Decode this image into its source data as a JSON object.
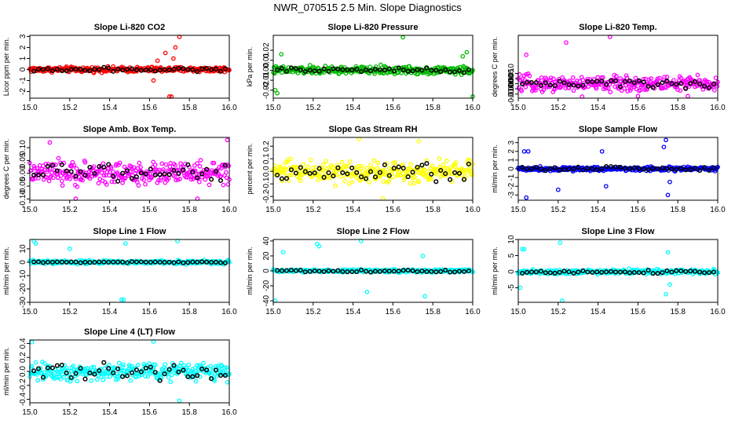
{
  "figure_title": "NWR_070515  2.5 Min. Slope Diagnostics",
  "colors": {
    "background": "#ffffff",
    "axes": "#000000",
    "highlight": "#000000"
  },
  "chart_data": [
    {
      "type": "scatter",
      "title": "Slope Li-820 CO2",
      "ylabel": "Licor ppm per min.",
      "color": "#ff0000",
      "xlim": [
        15.0,
        16.0
      ],
      "ylim": [
        -2.6,
        3.1
      ],
      "xticks": [
        "15.0",
        "15.2",
        "15.4",
        "15.6",
        "15.8",
        "16.0"
      ],
      "yticks": [
        "3",
        "2",
        "1",
        "0",
        "-1",
        "-2"
      ],
      "band": 0.35,
      "black_band": 0.2,
      "outliers": [
        [
          15.68,
          1.5
        ],
        [
          15.72,
          1.0
        ],
        [
          15.75,
          3.0
        ],
        [
          15.7,
          -2.5
        ],
        [
          15.71,
          -2.5
        ],
        [
          15.62,
          -1.0
        ],
        [
          15.73,
          2.0
        ],
        [
          15.64,
          0.8
        ]
      ]
    },
    {
      "type": "scatter",
      "title": "Slope Li-820 Pressure",
      "ylabel": "kPa per min.",
      "color": "#00bb00",
      "xlim": [
        15.0,
        16.0
      ],
      "ylim": [
        -0.028,
        0.035
      ],
      "xticks": [
        "15.0",
        "15.2",
        "15.4",
        "15.6",
        "15.8",
        "16.0"
      ],
      "yticks": [
        "0.02",
        "0.01",
        "0.00",
        "-0.01",
        "-0.02"
      ],
      "band": 0.006,
      "black_band": 0.003,
      "outliers": [
        [
          15.01,
          -0.02
        ],
        [
          15.02,
          -0.023
        ],
        [
          15.65,
          0.033
        ],
        [
          16.0,
          -0.027
        ],
        [
          15.97,
          0.018
        ],
        [
          15.95,
          0.014
        ],
        [
          15.04,
          0.016
        ]
      ]
    },
    {
      "type": "scatter",
      "title": "Slope Li-820 Temp.",
      "ylabel": "degrees C per min.",
      "color": "#ff00ff",
      "xlim": [
        15.0,
        16.0
      ],
      "ylim": [
        -0.014,
        0.047
      ],
      "xticks": [
        "15.0",
        "15.2",
        "15.4",
        "15.6",
        "15.8",
        "16.0"
      ],
      "yticks": [
        "0.010",
        "0.005",
        "0.000",
        "-0.005",
        "-0.010"
      ],
      "band": 0.011,
      "black_band": 0.005,
      "outliers": [
        [
          15.24,
          0.04
        ],
        [
          15.32,
          -0.013
        ],
        [
          15.46,
          0.046
        ],
        [
          15.6,
          -0.012
        ],
        [
          15.85,
          -0.012
        ],
        [
          15.04,
          0.028
        ]
      ]
    },
    {
      "type": "scatter",
      "title": "Slope Amb. Box Temp.",
      "ylabel": "degrees C per min.",
      "color": "#ff00ff",
      "xlim": [
        15.0,
        16.0
      ],
      "ylim": [
        -0.105,
        0.14
      ],
      "xticks": [
        "15.0",
        "15.2",
        "15.4",
        "15.6",
        "15.8",
        "16.0"
      ],
      "yticks": [
        "0.10",
        "0.05",
        "0.00",
        "-0.05",
        "-0.10"
      ],
      "band": 0.065,
      "black_band": 0.04,
      "outliers": [
        [
          15.99,
          0.13
        ],
        [
          15.1,
          0.12
        ],
        [
          15.23,
          -0.1
        ],
        [
          15.84,
          -0.1
        ]
      ]
    },
    {
      "type": "scatter",
      "title": "Slope Gas Stream RH",
      "ylabel": "percent per min.",
      "color": "#ffff00",
      "xlim": [
        15.0,
        16.0
      ],
      "ylim": [
        -0.23,
        0.27
      ],
      "xticks": [
        "15.0",
        "15.2",
        "15.4",
        "15.6",
        "15.8",
        "16.0"
      ],
      "yticks": [
        "0.2",
        "0.1",
        "0.0",
        "-0.1",
        "-0.2"
      ],
      "band": 0.13,
      "black_band": 0.1,
      "outliers": [
        [
          15.43,
          0.26
        ],
        [
          15.55,
          -0.22
        ],
        [
          15.73,
          0.24
        ]
      ]
    },
    {
      "type": "scatter",
      "title": "Slope Sample Flow",
      "ylabel": "ml/min per min.",
      "color": "#0000ff",
      "xlim": [
        15.0,
        16.0
      ],
      "ylim": [
        -3.6,
        3.6
      ],
      "xticks": [
        "15.0",
        "15.2",
        "15.4",
        "15.6",
        "15.8",
        "16.0"
      ],
      "yticks": [
        "3",
        "2",
        "1",
        "0",
        "-1",
        "-2",
        "-3"
      ],
      "band": 0.35,
      "black_band": 0.3,
      "outliers": [
        [
          15.03,
          2.0
        ],
        [
          15.05,
          2.0
        ],
        [
          15.04,
          -3.3
        ],
        [
          15.2,
          -2.4
        ],
        [
          15.42,
          2.0
        ],
        [
          15.44,
          -2.0
        ],
        [
          15.74,
          3.3
        ],
        [
          15.75,
          -3.0
        ],
        [
          15.73,
          2.5
        ],
        [
          15.76,
          -1.5
        ]
      ]
    },
    {
      "type": "scatter",
      "title": "Slope Line 1 Flow",
      "ylabel": "ml/min per min.",
      "color": "#00ffff",
      "xlim": [
        15.0,
        16.0
      ],
      "ylim": [
        -30,
        17
      ],
      "xticks": [
        "15.0",
        "15.2",
        "15.4",
        "15.6",
        "15.8",
        "16.0"
      ],
      "yticks": [
        "10",
        "0",
        "-10",
        "-20",
        "-30"
      ],
      "band": 2.0,
      "black_band": 0.6,
      "outliers": [
        [
          15.02,
          16
        ],
        [
          15.03,
          14
        ],
        [
          15.46,
          -28
        ],
        [
          15.47,
          -28
        ],
        [
          15.74,
          16
        ],
        [
          15.48,
          14
        ],
        [
          15.2,
          10
        ]
      ]
    },
    {
      "type": "scatter",
      "title": "Slope Line 2 Flow",
      "ylabel": "ml/min per min.",
      "color": "#00ffff",
      "xlim": [
        15.0,
        16.0
      ],
      "ylim": [
        -42,
        42
      ],
      "xticks": [
        "15.0",
        "15.2",
        "15.4",
        "15.6",
        "15.8",
        "16.0"
      ],
      "yticks": [
        "40",
        "20",
        "0",
        "-20",
        "-40"
      ],
      "band": 3.0,
      "black_band": 2.0,
      "outliers": [
        [
          15.22,
          36
        ],
        [
          15.23,
          33
        ],
        [
          15.44,
          40
        ],
        [
          15.47,
          -28
        ],
        [
          15.75,
          20
        ],
        [
          15.76,
          -34
        ],
        [
          15.01,
          -40
        ],
        [
          15.05,
          25
        ]
      ]
    },
    {
      "type": "scatter",
      "title": "Slope Line 3 Flow",
      "ylabel": "ml/min per min.",
      "color": "#00ffff",
      "xlim": [
        15.0,
        16.0
      ],
      "ylim": [
        -9.5,
        10
      ],
      "xticks": [
        "15.0",
        "15.2",
        "15.4",
        "15.6",
        "15.8",
        "16.0"
      ],
      "yticks": [
        "10",
        "5",
        "0",
        "-5"
      ],
      "band": 1.0,
      "black_band": 0.6,
      "outliers": [
        [
          15.02,
          7
        ],
        [
          15.03,
          7
        ],
        [
          15.01,
          -5
        ],
        [
          15.21,
          9
        ],
        [
          15.22,
          -9
        ],
        [
          15.75,
          6
        ],
        [
          15.74,
          -7
        ],
        [
          15.76,
          -4
        ]
      ]
    },
    {
      "type": "scatter",
      "title": "Slope Line 4 (LT) Flow",
      "ylabel": "ml/min per min.",
      "color": "#00ffff",
      "xlim": [
        15.0,
        16.0
      ],
      "ylim": [
        -0.45,
        0.45
      ],
      "xticks": [
        "15.0",
        "15.2",
        "15.4",
        "15.6",
        "15.8",
        "16.0"
      ],
      "yticks": [
        "0.4",
        "0.2",
        "0.0",
        "-0.2",
        "-0.4"
      ],
      "band": 0.2,
      "black_band": 0.15,
      "outliers": [
        [
          15.01,
          0.42
        ],
        [
          15.62,
          0.43
        ],
        [
          15.75,
          -0.42
        ]
      ]
    }
  ]
}
